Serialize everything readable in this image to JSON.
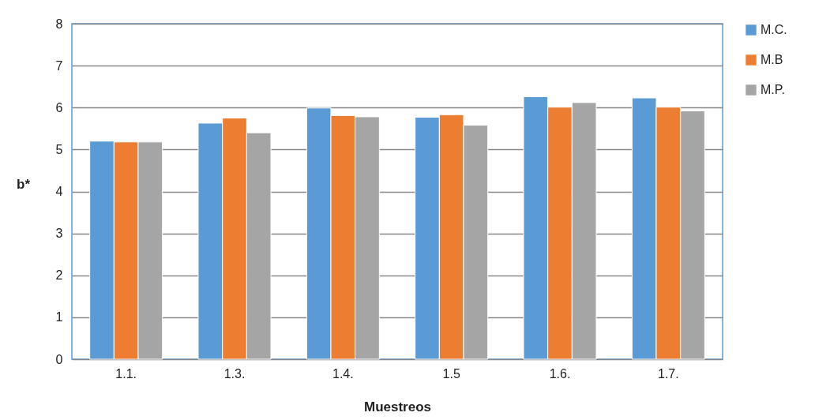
{
  "chart_data": {
    "type": "bar",
    "xlabel": "Muestreos",
    "ylabel": "b*",
    "categories": [
      "1.1.",
      "1.3.",
      "1.4.",
      "1.5",
      "1.6.",
      "1.7."
    ],
    "series": [
      {
        "name": "M.C.",
        "color": "#5b9bd5",
        "values": [
          5.2,
          5.63,
          5.99,
          5.77,
          6.26,
          6.23
        ]
      },
      {
        "name": "M.B",
        "color": "#ed7d31",
        "values": [
          5.18,
          5.75,
          5.81,
          5.83,
          6.01,
          6.01
        ]
      },
      {
        "name": "M.P.",
        "color": "#a5a5a5",
        "values": [
          5.18,
          5.4,
          5.78,
          5.58,
          6.12,
          5.92
        ]
      }
    ],
    "ylim": [
      0,
      8
    ],
    "yticks": [
      0,
      1,
      2,
      3,
      4,
      5,
      6,
      7,
      8
    ],
    "grid": "y",
    "legend": "right"
  }
}
